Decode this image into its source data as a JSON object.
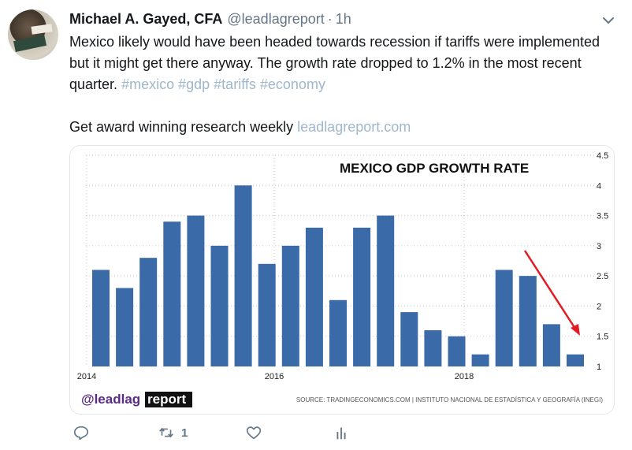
{
  "user": {
    "name": "Michael A. Gayed, CFA",
    "handle": "@leadlagreport",
    "separator": "·",
    "time": "1h"
  },
  "tweet": {
    "text": "Mexico likely would have been headed towards recession if tariffs were implemented but it might get there anyway. The growth rate dropped to 1.2% in the most recent quarter.",
    "hashtags": [
      "#mexico",
      "#gdp",
      "#tariffs",
      "#economy"
    ],
    "promo_text": "Get award winning research weekly",
    "promo_link": "leadlagreport.com"
  },
  "chart_data": {
    "type": "bar",
    "title": "MEXICO GDP GROWTH RATE",
    "values": [
      2.6,
      2.3,
      2.8,
      3.4,
      3.5,
      3.0,
      4.0,
      2.7,
      3.0,
      3.3,
      2.1,
      3.3,
      3.5,
      1.9,
      1.6,
      1.5,
      1.2,
      2.6,
      2.5,
      1.7,
      1.2
    ],
    "x_tick_labels": [
      "2014",
      "2016",
      "2018"
    ],
    "y_ticks": [
      "1",
      "1.5",
      "2",
      "2.5",
      "3",
      "3.5",
      "4",
      "4.5"
    ],
    "ylim": [
      1,
      4.5
    ],
    "grid": true,
    "bar_color": "#3a6aa8",
    "annotation": "red arrow pointing down to latest bar",
    "arrow_color": "#e31b23",
    "source": "SOURCE: TRADINGECONOMICS.COM | INSTITUTO NACIONAL DE ESTADÍSTICA Y GEOGRAFÍA (INEGI)",
    "logo_left": "@leadlag",
    "logo_right": "report"
  },
  "actions": {
    "reply_icon": "reply-icon",
    "retweet_icon": "retweet-icon",
    "retweet_count": "1",
    "like_icon": "heart-icon",
    "analytics_icon": "analytics-icon"
  },
  "colors": {
    "link": "#9fb7cc",
    "muted": "#657786"
  }
}
